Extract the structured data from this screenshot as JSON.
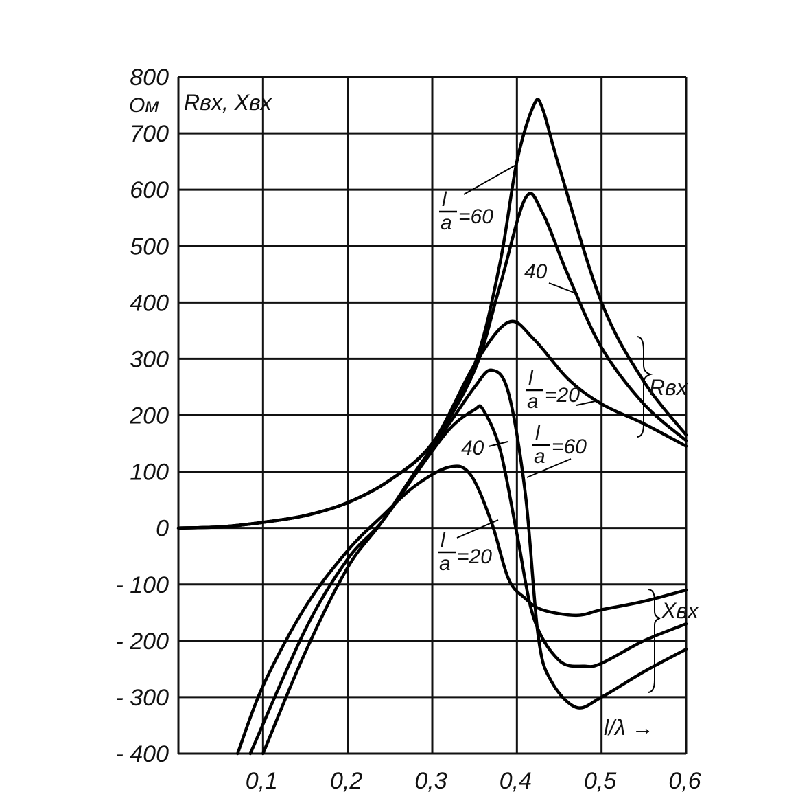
{
  "chart_data": {
    "type": "line",
    "title": "",
    "xlabel": "l/λ →",
    "ylabel": "Rвх, Xвх",
    "y_unit": "Ом",
    "xlim": [
      0,
      0.6
    ],
    "ylim": [
      -400,
      800
    ],
    "x_ticks": [
      0.1,
      0.2,
      0.3,
      0.4,
      0.5,
      0.6
    ],
    "x_tick_labels": [
      "0,1",
      "0,2",
      "0,3",
      "0,4",
      "0,5",
      "0,6"
    ],
    "y_ticks": [
      -400,
      -300,
      -200,
      -100,
      0,
      100,
      200,
      300,
      400,
      500,
      600,
      700,
      800
    ],
    "y_tick_labels": [
      "- 400",
      "- 300",
      "- 200",
      "- 100",
      "0",
      "100",
      "200",
      "300",
      "400",
      "500",
      "600",
      "700",
      "800"
    ],
    "grid": true,
    "legend": "none",
    "series": [
      {
        "group": "R",
        "ratio": "60",
        "x": [
          0,
          0.05,
          0.1,
          0.15,
          0.2,
          0.25,
          0.3,
          0.35,
          0.38,
          0.4,
          0.42,
          0.43,
          0.45,
          0.5,
          0.55,
          0.6
        ],
        "values": [
          0,
          2,
          10,
          22,
          45,
          85,
          150,
          290,
          470,
          650,
          750,
          745,
          640,
          400,
          260,
          165
        ]
      },
      {
        "group": "R",
        "ratio": "40",
        "x": [
          0,
          0.05,
          0.1,
          0.15,
          0.2,
          0.25,
          0.3,
          0.35,
          0.38,
          0.41,
          0.43,
          0.46,
          0.5,
          0.55,
          0.6
        ],
        "values": [
          0,
          2,
          10,
          22,
          45,
          85,
          150,
          280,
          430,
          585,
          560,
          450,
          320,
          220,
          155
        ]
      },
      {
        "group": "R",
        "ratio": "20",
        "x": [
          0,
          0.05,
          0.1,
          0.15,
          0.2,
          0.25,
          0.3,
          0.35,
          0.39,
          0.42,
          0.46,
          0.5,
          0.55,
          0.6
        ],
        "values": [
          0,
          2,
          10,
          22,
          45,
          85,
          150,
          290,
          365,
          335,
          265,
          220,
          185,
          145
        ]
      },
      {
        "group": "X",
        "ratio": "60",
        "x": [
          0.1,
          0.15,
          0.2,
          0.24,
          0.28,
          0.32,
          0.35,
          0.37,
          0.39,
          0.41,
          0.425,
          0.44,
          0.47,
          0.5,
          0.55,
          0.6
        ],
        "values": [
          -400,
          -220,
          -70,
          10,
          100,
          185,
          250,
          280,
          240,
          60,
          -190,
          -270,
          -318,
          -300,
          -255,
          -215
        ]
      },
      {
        "group": "X",
        "ratio": "40",
        "x": [
          0.085,
          0.15,
          0.2,
          0.24,
          0.28,
          0.32,
          0.35,
          0.36,
          0.38,
          0.4,
          0.42,
          0.45,
          0.48,
          0.5,
          0.55,
          0.6
        ],
        "values": [
          -400,
          -180,
          -55,
          10,
          95,
          175,
          210,
          210,
          140,
          -10,
          -160,
          -235,
          -245,
          -240,
          -200,
          -170
        ]
      },
      {
        "group": "X",
        "ratio": "20",
        "x": [
          0.07,
          0.1,
          0.15,
          0.2,
          0.24,
          0.28,
          0.32,
          0.345,
          0.37,
          0.39,
          0.41,
          0.43,
          0.47,
          0.5,
          0.55,
          0.6
        ],
        "values": [
          -400,
          -280,
          -140,
          -40,
          20,
          75,
          108,
          95,
          10,
          -90,
          -125,
          -145,
          -155,
          -145,
          -130,
          -110
        ]
      }
    ],
    "annotations": {
      "r_group": "Rвх",
      "x_group": "Xвх",
      "ratio_num": "l",
      "ratio_den": "a",
      "r60": "=60",
      "r40": "40",
      "r20": "=20",
      "x60": "=60",
      "x40": "40",
      "x20": "=20"
    }
  }
}
